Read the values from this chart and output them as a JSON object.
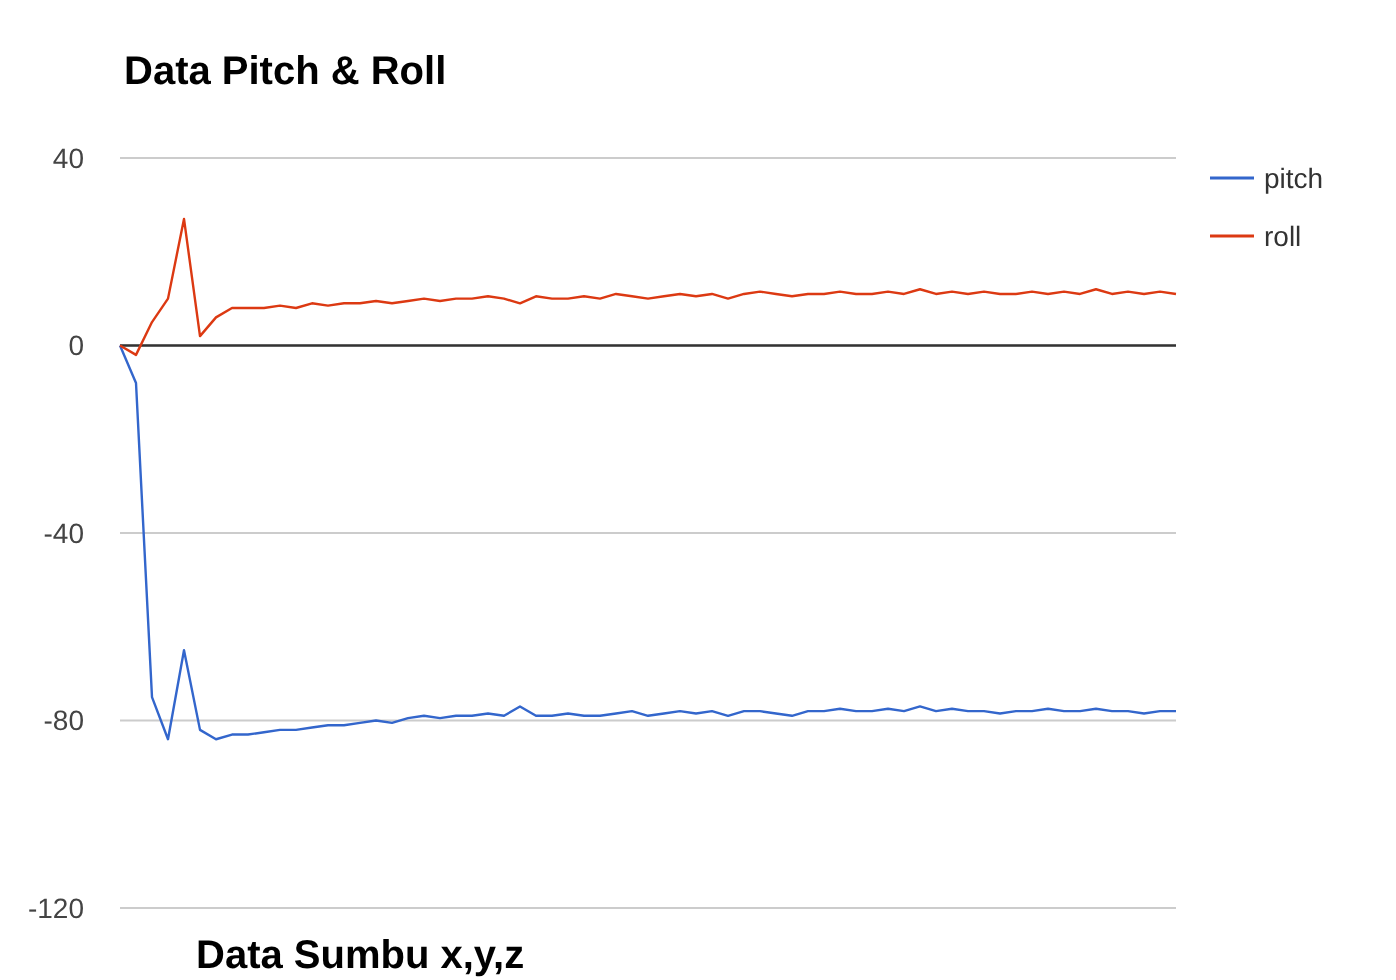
{
  "chart_data": {
    "type": "line",
    "title": "Data Pitch & Roll",
    "annotations": [
      "Data Sumbu x,y,z"
    ],
    "categories": [
      null,
      null,
      null,
      null,
      null,
      null,
      null,
      null,
      null,
      null,
      null,
      null,
      null,
      null,
      null,
      null,
      null,
      null,
      null,
      null,
      null,
      null,
      null,
      null,
      null,
      null,
      null,
      null,
      null,
      null,
      null,
      null,
      null,
      null,
      null,
      null,
      null,
      null,
      null,
      null,
      null,
      null,
      null,
      null,
      null,
      null,
      null,
      null,
      null,
      null,
      null,
      null,
      null,
      null,
      null,
      null,
      null,
      null,
      null,
      null,
      null,
      null,
      null,
      null,
      null,
      null,
      null
    ],
    "series": [
      {
        "name": "pitch",
        "color": "#3366cc",
        "values": [
          0,
          -8,
          -75,
          -84,
          -65,
          -82,
          -84,
          -83,
          -83,
          -82.5,
          -82,
          -82,
          -81.5,
          -81,
          -81,
          -80.5,
          -80,
          -80.5,
          -79.5,
          -79,
          -79.5,
          -79,
          -79,
          -78.5,
          -79,
          -77,
          -79,
          -79,
          -78.5,
          -79,
          -79,
          -78.5,
          -78,
          -79,
          -78.5,
          -78,
          -78.5,
          -78,
          -79,
          -78,
          -78,
          -78.5,
          -79,
          -78,
          -78,
          -77.5,
          -78,
          -78,
          -77.5,
          -78,
          -77,
          -78,
          -77.5,
          -78,
          -78,
          -78.5,
          -78,
          -78,
          -77.5,
          -78,
          -78,
          -77.5,
          -78,
          -78,
          -78.5,
          -78,
          -78
        ]
      },
      {
        "name": "roll",
        "color": "#dc3912",
        "values": [
          0,
          -2,
          5,
          10,
          27,
          2,
          6,
          8,
          8,
          8,
          8.5,
          8,
          9,
          8.5,
          9,
          9,
          9.5,
          9,
          9.5,
          10,
          9.5,
          10,
          10,
          10.5,
          10,
          9,
          10.5,
          10,
          10,
          10.5,
          10,
          11,
          10.5,
          10,
          10.5,
          11,
          10.5,
          11,
          10,
          11,
          11.5,
          11,
          10.5,
          11,
          11,
          11.5,
          11,
          11,
          11.5,
          11,
          12,
          11,
          11.5,
          11,
          11.5,
          11,
          11,
          11.5,
          11,
          11.5,
          11,
          12,
          11,
          11.5,
          11,
          11.5,
          11
        ]
      }
    ],
    "ylim": [
      -120,
      40
    ],
    "yticks": [
      -120,
      -80,
      -40,
      0,
      40
    ],
    "grid": "y",
    "legend": "top right",
    "ref_lines": [
      {
        "axis": "y",
        "value": 0,
        "color": "#333333"
      }
    ]
  }
}
